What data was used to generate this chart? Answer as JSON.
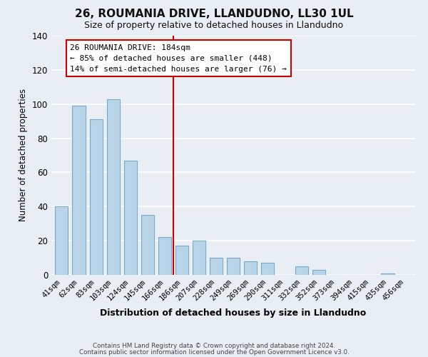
{
  "title": "26, ROUMANIA DRIVE, LLANDUDNO, LL30 1UL",
  "subtitle": "Size of property relative to detached houses in Llandudno",
  "xlabel": "Distribution of detached houses by size in Llandudno",
  "ylabel": "Number of detached properties",
  "bar_labels": [
    "41sqm",
    "62sqm",
    "83sqm",
    "103sqm",
    "124sqm",
    "145sqm",
    "166sqm",
    "186sqm",
    "207sqm",
    "228sqm",
    "249sqm",
    "269sqm",
    "290sqm",
    "311sqm",
    "332sqm",
    "352sqm",
    "373sqm",
    "394sqm",
    "415sqm",
    "435sqm",
    "456sqm"
  ],
  "bar_values": [
    40,
    99,
    91,
    103,
    67,
    35,
    22,
    17,
    20,
    10,
    10,
    8,
    7,
    0,
    5,
    3,
    0,
    0,
    0,
    1,
    0
  ],
  "bar_color": "#b8d4e8",
  "bar_edge_color": "#7aaac8",
  "annotation_title": "26 ROUMANIA DRIVE: 184sqm",
  "annotation_line1": "← 85% of detached houses are smaller (448)",
  "annotation_line2": "14% of semi-detached houses are larger (76) →",
  "annotation_box_facecolor": "#ffffff",
  "annotation_box_edgecolor": "#cc0000",
  "vline_color": "#cc0000",
  "vline_x_index": 7,
  "ylim": [
    0,
    140
  ],
  "yticks": [
    0,
    20,
    40,
    60,
    80,
    100,
    120,
    140
  ],
  "background_color": "#e8eef4",
  "grid_color": "#ffffff",
  "title_fontsize": 11,
  "subtitle_fontsize": 9,
  "footer_line1": "Contains HM Land Registry data © Crown copyright and database right 2024.",
  "footer_line2": "Contains public sector information licensed under the Open Government Licence v3.0."
}
